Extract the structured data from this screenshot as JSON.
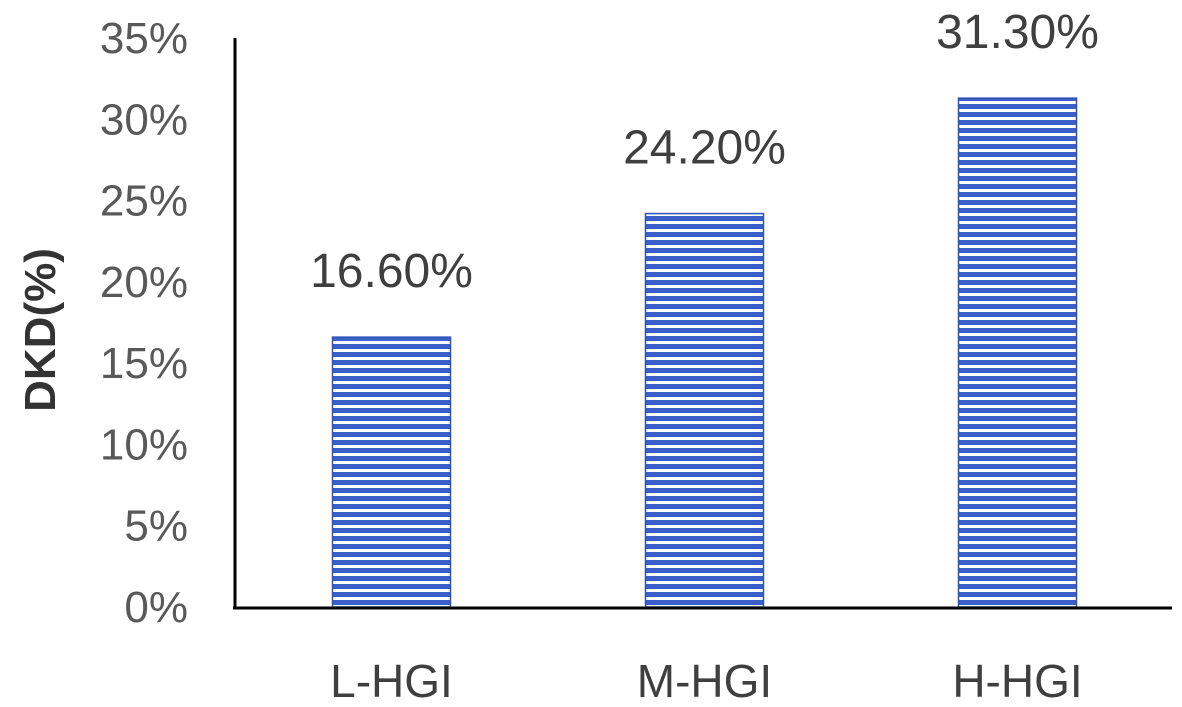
{
  "chart_data": {
    "type": "bar",
    "categories": [
      "L-HGI",
      "M-HGI",
      "H-HGI"
    ],
    "values": [
      16.6,
      24.2,
      31.3
    ],
    "data_labels": [
      "16.60%",
      "24.20%",
      "31.30%"
    ],
    "title": "",
    "xlabel": "",
    "ylabel": "DKD(%)",
    "ylim": [
      0,
      35
    ],
    "yticks": [
      0,
      5,
      10,
      15,
      20,
      25,
      30,
      35
    ],
    "ytick_labels": [
      "0%",
      "5%",
      "10%",
      "15%",
      "20%",
      "25%",
      "30%",
      "35%"
    ],
    "grid": false,
    "legend": "none",
    "bar_fill_pattern": "horizontal-stripes",
    "colors": {
      "bar_stripe": "#3a5fc8",
      "bar_gap": "#ffffff",
      "bar_edge": "#2f52b8",
      "axis": "#000000"
    }
  }
}
